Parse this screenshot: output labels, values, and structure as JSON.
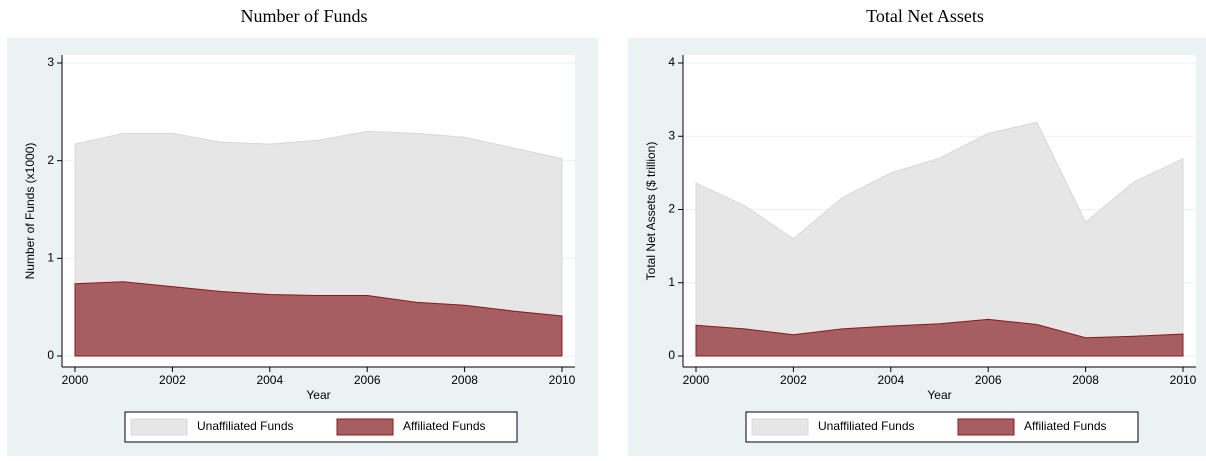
{
  "chart_data": [
    {
      "type": "area",
      "title": "Number of Funds",
      "x_label": "Year",
      "y_label": "Number of Funds (x1000)",
      "x": [
        2000,
        2001,
        2002,
        2003,
        2004,
        2005,
        2006,
        2007,
        2008,
        2009,
        2010
      ],
      "series": [
        {
          "name": "Unaffiliated Funds",
          "color": "#e6e6e6",
          "values": [
            2.17,
            2.28,
            2.28,
            2.19,
            2.17,
            2.21,
            2.3,
            2.28,
            2.24,
            2.13,
            2.02
          ]
        },
        {
          "name": "Affiliated Funds",
          "color": "#a65e62",
          "values": [
            0.74,
            0.76,
            0.71,
            0.66,
            0.63,
            0.62,
            0.62,
            0.55,
            0.52,
            0.46,
            0.41
          ]
        }
      ],
      "xlim": [
        2000,
        2010
      ],
      "xticks": [
        2000,
        2002,
        2004,
        2006,
        2008,
        2010
      ],
      "ylim": [
        0,
        3
      ],
      "yticks": [
        0,
        1,
        2,
        3
      ],
      "grid": true,
      "legend": "bottom"
    },
    {
      "type": "area",
      "title": "Total Net Assets",
      "x_label": "Year",
      "y_label": "Total Net Assets ($ trillion)",
      "x": [
        2000,
        2001,
        2002,
        2003,
        2004,
        2005,
        2006,
        2007,
        2008,
        2009,
        2010
      ],
      "series": [
        {
          "name": "Unaffiliated Funds",
          "color": "#e6e6e6",
          "values": [
            2.36,
            2.05,
            1.6,
            2.16,
            2.5,
            2.7,
            3.04,
            3.19,
            1.83,
            2.38,
            2.69
          ]
        },
        {
          "name": "Affiliated Funds",
          "color": "#a65e62",
          "values": [
            0.42,
            0.37,
            0.29,
            0.37,
            0.41,
            0.44,
            0.5,
            0.43,
            0.25,
            0.27,
            0.3
          ]
        }
      ],
      "xlim": [
        2000,
        2010
      ],
      "xticks": [
        2000,
        2002,
        2004,
        2006,
        2008,
        2010
      ],
      "ylim": [
        0,
        4
      ],
      "yticks": [
        0,
        1,
        2,
        3,
        4
      ],
      "grid": true,
      "legend": "bottom"
    }
  ]
}
